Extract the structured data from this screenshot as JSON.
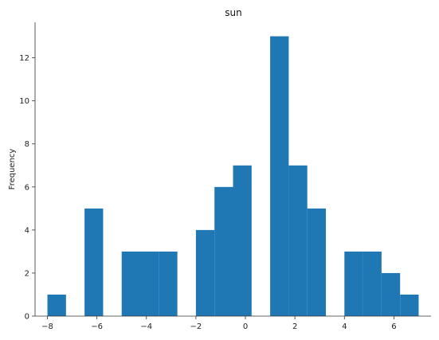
{
  "chart_data": {
    "type": "bar",
    "title": "sun",
    "xlabel": "",
    "ylabel": "Frequency",
    "xlim": [
      -8.5,
      7.5
    ],
    "ylim": [
      0,
      13.65
    ],
    "grid": false,
    "bin_width": 0.75,
    "bins": [
      {
        "start": -8.0,
        "end": -7.25,
        "count": 1
      },
      {
        "start": -6.5,
        "end": -5.75,
        "count": 5
      },
      {
        "start": -5.0,
        "end": -4.25,
        "count": 3
      },
      {
        "start": -4.25,
        "end": -3.5,
        "count": 3
      },
      {
        "start": -3.5,
        "end": -2.75,
        "count": 3
      },
      {
        "start": -2.0,
        "end": -1.25,
        "count": 4
      },
      {
        "start": -1.25,
        "end": -0.5,
        "count": 6
      },
      {
        "start": -0.5,
        "end": 0.25,
        "count": 7
      },
      {
        "start": 1.0,
        "end": 1.75,
        "count": 13
      },
      {
        "start": 1.75,
        "end": 2.5,
        "count": 7
      },
      {
        "start": 2.5,
        "end": 3.25,
        "count": 5
      },
      {
        "start": 4.0,
        "end": 4.75,
        "count": 3
      },
      {
        "start": 4.75,
        "end": 5.5,
        "count": 3
      },
      {
        "start": 5.5,
        "end": 6.25,
        "count": 2
      },
      {
        "start": 6.25,
        "end": 7.0,
        "count": 1
      }
    ],
    "x_ticks": [
      -8,
      -6,
      -4,
      -2,
      0,
      2,
      4,
      6
    ],
    "x_tick_labels": [
      "−8",
      "−6",
      "−4",
      "−2",
      "0",
      "2",
      "4",
      "6"
    ],
    "y_ticks": [
      0,
      2,
      4,
      6,
      8,
      10,
      12
    ],
    "y_tick_labels": [
      "0",
      "2",
      "4",
      "6",
      "8",
      "10",
      "12"
    ],
    "colors": {
      "bar": "#1f77b4",
      "axis": "#333333"
    }
  }
}
